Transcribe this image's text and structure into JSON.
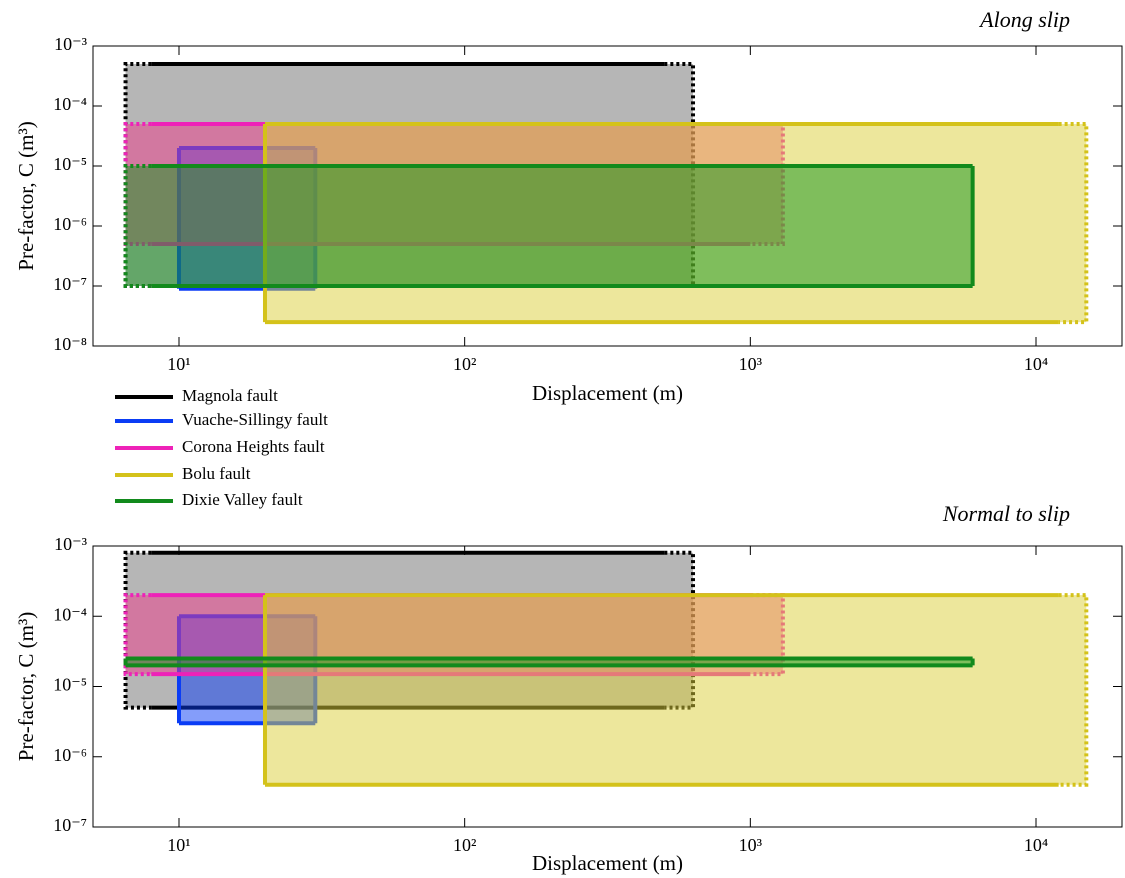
{
  "chart_data": [
    {
      "type": "range-box",
      "title": "Along slip",
      "xlabel": "Displacement (m)",
      "ylabel": "Pre-factor, C (m³)",
      "xscale": "log",
      "yscale": "log",
      "xlim": [
        5,
        20000
      ],
      "xticks": [
        {
          "value": 10,
          "label": "10¹"
        },
        {
          "value": 100,
          "label": "10²"
        },
        {
          "value": 1000,
          "label": "10³"
        },
        {
          "value": 10000,
          "label": "10⁴"
        }
      ],
      "ylim": [
        1e-08,
        0.001
      ],
      "yticks": [
        {
          "value": 1e-08,
          "label": "10⁻⁸"
        },
        {
          "value": 1e-07,
          "label": "10⁻⁷"
        },
        {
          "value": 1e-06,
          "label": "10⁻⁶"
        },
        {
          "value": 1e-05,
          "label": "10⁻⁵"
        },
        {
          "value": 0.0001,
          "label": "10⁻⁴"
        },
        {
          "value": 0.001,
          "label": "10⁻³"
        }
      ],
      "series": [
        {
          "name": "Magnola fault",
          "color": "#000000",
          "fill": "#6e6e6e",
          "x": [
            8,
            500
          ],
          "x_dotted": [
            6.5,
            630
          ],
          "y": [
            1e-07,
            0.0005
          ]
        },
        {
          "name": "Vuache-Sillingy fault",
          "color": "#0a3cf5",
          "fill": "#0a3cf5",
          "x": [
            10,
            30
          ],
          "y": [
            9e-08,
            2e-05
          ]
        },
        {
          "name": "Corona Heights fault",
          "color": "#ee22b8",
          "fill": "#ee3a8a",
          "x": [
            8,
            1000
          ],
          "x_dotted": [
            6.5,
            1300
          ],
          "y": [
            5e-07,
            5e-05
          ]
        },
        {
          "name": "Bolu fault",
          "color": "#d4c21a",
          "fill": "#dccf3a",
          "x": [
            20,
            12000
          ],
          "x_dotted": [
            20,
            15000
          ],
          "y": [
            2.5e-08,
            5e-05
          ]
        },
        {
          "name": "Dixie Valley fault",
          "color": "#128a1c",
          "fill": "#12961c",
          "x": [
            8,
            6000
          ],
          "x_dotted": [
            6.5,
            6000
          ],
          "y": [
            1e-07,
            1e-05
          ]
        }
      ]
    },
    {
      "type": "range-box",
      "title": "Normal to slip",
      "xlabel": "Displacement (m)",
      "ylabel": "Pre-factor, C (m³)",
      "xscale": "log",
      "yscale": "log",
      "xlim": [
        5,
        20000
      ],
      "xticks": [
        {
          "value": 10,
          "label": "10¹"
        },
        {
          "value": 100,
          "label": "10²"
        },
        {
          "value": 1000,
          "label": "10³"
        },
        {
          "value": 10000,
          "label": "10⁴"
        }
      ],
      "ylim": [
        1e-07,
        0.001
      ],
      "yticks": [
        {
          "value": 1e-07,
          "label": "10⁻⁷"
        },
        {
          "value": 1e-06,
          "label": "10⁻⁶"
        },
        {
          "value": 1e-05,
          "label": "10⁻⁵"
        },
        {
          "value": 0.0001,
          "label": "10⁻⁴"
        },
        {
          "value": 0.001,
          "label": "10⁻³"
        }
      ],
      "series": [
        {
          "color": "#000000",
          "fill": "#6e6e6e",
          "x": [
            8,
            500
          ],
          "x_dotted": [
            6.5,
            630
          ],
          "y": [
            5e-06,
            0.0008
          ]
        },
        {
          "color": "#0a3cf5",
          "fill": "#0a3cf5",
          "x": [
            10,
            30
          ],
          "y": [
            3e-06,
            0.0001
          ]
        },
        {
          "color": "#ee22b8",
          "fill": "#ee3a8a",
          "x": [
            8,
            1000
          ],
          "x_dotted": [
            6.5,
            1300
          ],
          "y": [
            1.5e-05,
            0.0002
          ]
        },
        {
          "color": "#d4c21a",
          "fill": "#dccf3a",
          "x": [
            20,
            12000
          ],
          "x_dotted": [
            20,
            15000
          ],
          "y": [
            4e-07,
            0.0002
          ]
        },
        {
          "color": "#128a1c",
          "fill": "#12961c",
          "x": [
            6.5,
            6000
          ],
          "y": [
            2e-05,
            2.5e-05
          ]
        }
      ]
    }
  ]
}
